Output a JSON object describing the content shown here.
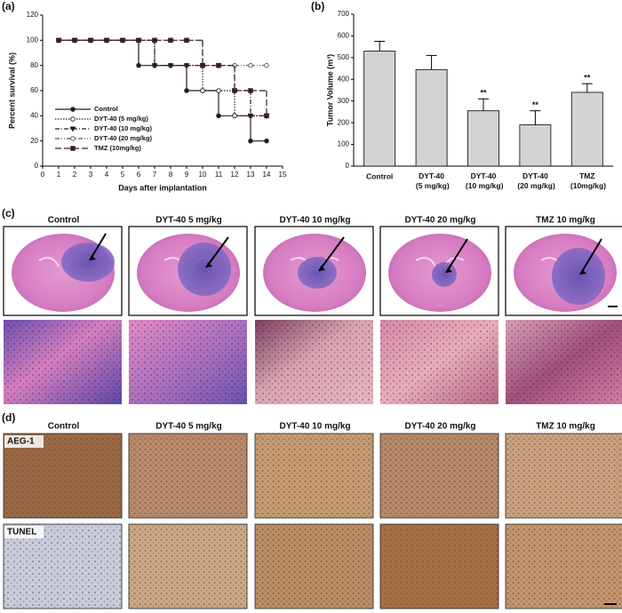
{
  "chart_data": [
    {
      "type": "line",
      "panel": "(a)",
      "y_label": "Percent survival (%)",
      "x_label": "Days after implantation",
      "x": [
        1,
        2,
        3,
        4,
        5,
        6,
        7,
        8,
        9,
        10,
        11,
        12,
        13,
        14
      ],
      "xlim": [
        0,
        15
      ],
      "xticks": [
        0,
        1,
        2,
        3,
        4,
        5,
        6,
        7,
        8,
        9,
        10,
        11,
        12,
        13,
        14,
        15
      ],
      "ylim": [
        0,
        120
      ],
      "yticks": [
        0,
        20,
        40,
        60,
        80,
        100,
        120
      ],
      "legend": "lower-left",
      "series": [
        {
          "name": "Control",
          "color": "#2b1a1a",
          "dash": "solid",
          "marker": "circle-filled",
          "values": [
            100,
            100,
            100,
            100,
            100,
            80,
            80,
            80,
            60,
            60,
            40,
            40,
            20,
            20
          ]
        },
        {
          "name": "DYT-40 (5 mg/kg)",
          "color": "#2b1a1a",
          "dash": "dotted",
          "marker": "circle-open",
          "values": [
            100,
            100,
            100,
            100,
            100,
            100,
            80,
            80,
            80,
            60,
            60,
            40,
            40,
            40
          ]
        },
        {
          "name": "DYT-40 (10 mg/kg)",
          "color": "#2b1a1a",
          "dash": "dashdot",
          "marker": "triangle-filled",
          "values": [
            100,
            100,
            100,
            100,
            100,
            100,
            80,
            80,
            80,
            80,
            80,
            60,
            40,
            40
          ]
        },
        {
          "name": "DYT-40 (20 mg/kg)",
          "color": "#555555",
          "dash": "dashdotdot",
          "marker": "circle-open",
          "values": [
            100,
            100,
            100,
            100,
            100,
            100,
            100,
            100,
            100,
            80,
            80,
            80,
            80,
            80
          ]
        },
        {
          "name": "TMZ (10mg/kg)",
          "color": "#3a1f1f",
          "dash": "longdash",
          "marker": "square-filled",
          "values": [
            100,
            100,
            100,
            100,
            100,
            100,
            100,
            100,
            100,
            80,
            80,
            60,
            60,
            40
          ]
        }
      ]
    },
    {
      "type": "bar",
      "panel": "(b)",
      "y_label": "Tumor Volume (m³)",
      "categories": [
        "Control",
        "DYT-40 (5 mg/kg)",
        "DYT-40 (10 mg/kg)",
        "DYT-40 (20 mg/kg)",
        "TMZ (10mg/kg)"
      ],
      "values": [
        530,
        445,
        255,
        190,
        340
      ],
      "errors": [
        45,
        65,
        55,
        65,
        40
      ],
      "significance": [
        null,
        null,
        "**",
        "**",
        "**"
      ],
      "color": "#d3d3d3",
      "ylim": [
        0,
        700
      ],
      "yticks": [
        0,
        100,
        200,
        300,
        400,
        500,
        600,
        700
      ]
    }
  ],
  "panel_c": {
    "label": "(c)",
    "columns": [
      "Control",
      "DYT-40 5 mg/kg",
      "DYT-40 10 mg/kg",
      "DYT-40 20 mg/kg",
      "TMZ 10 mg/kg"
    ]
  },
  "panel_d": {
    "label": "(d)",
    "columns": [
      "Control",
      "DYT-40 5 mg/kg",
      "DYT-40 10 mg/kg",
      "DYT-40 20 mg/kg",
      "TMZ 10 mg/kg"
    ],
    "rows": [
      "AEG-1",
      "TUNEL"
    ]
  }
}
